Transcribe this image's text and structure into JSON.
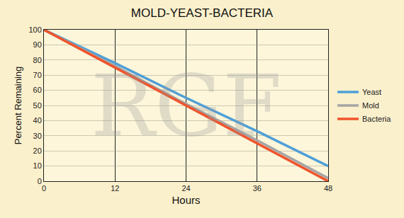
{
  "chart_data": {
    "type": "line",
    "title": "MOLD-YEAST-BACTERIA",
    "x_label": "Hours",
    "y_label": "Percent Remaining",
    "x": [
      0,
      12,
      24,
      36,
      48
    ],
    "series": [
      {
        "name": "Yeast",
        "color": "#4f9fd8",
        "values": [
          100,
          78,
          55,
          33,
          10
        ]
      },
      {
        "name": "Mold",
        "color": "#a5a5a5",
        "values": [
          100,
          76,
          51,
          27,
          2
        ]
      },
      {
        "name": "Bacteria",
        "color": "#f0542c",
        "values": [
          100,
          75,
          50,
          25,
          0
        ]
      }
    ],
    "xlim": [
      0,
      48
    ],
    "xticks": [
      0,
      12,
      24,
      36,
      48
    ],
    "ylim": [
      0,
      100
    ],
    "yticks": [
      0,
      10,
      20,
      30,
      40,
      50,
      60,
      70,
      80,
      90,
      100
    ],
    "grid": true,
    "legend": "right",
    "annotations": [
      "RGF"
    ]
  }
}
